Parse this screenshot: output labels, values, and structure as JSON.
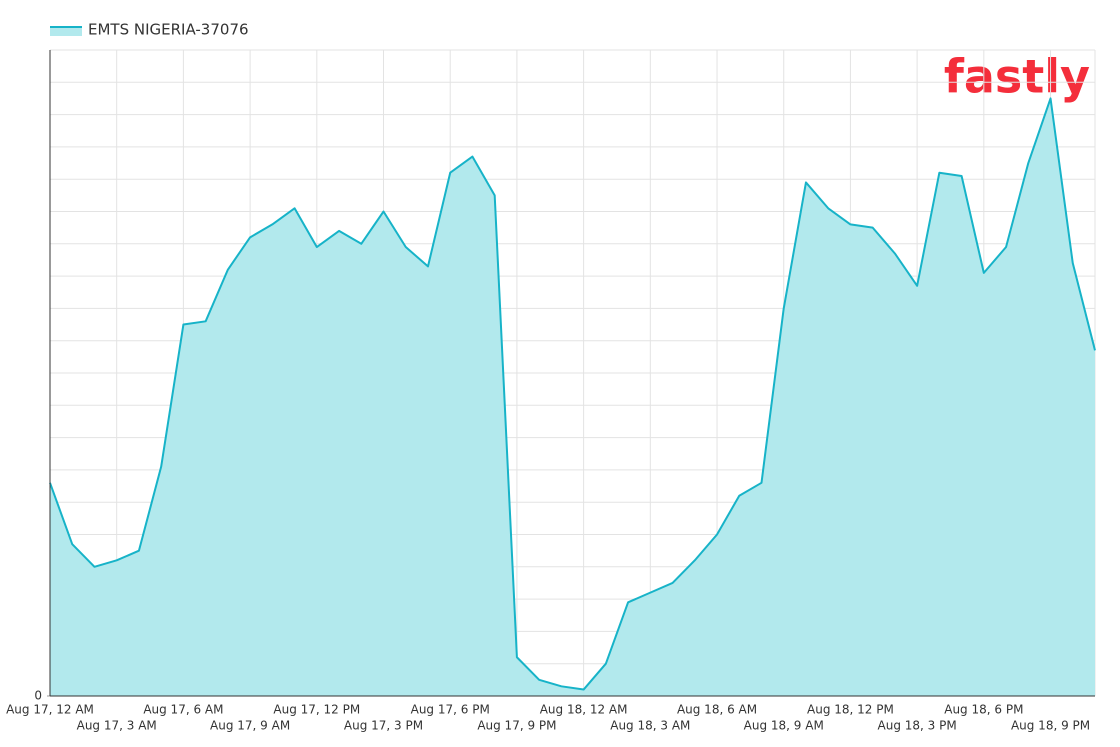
{
  "chart_data": {
    "type": "area",
    "logo": "fastly",
    "categories": [
      "Aug 17, 12 AM",
      null,
      null,
      "Aug 17, 3 AM",
      null,
      null,
      "Aug 17, 6 AM",
      null,
      null,
      "Aug 17, 9 AM",
      null,
      null,
      "Aug 17, 12 PM",
      null,
      null,
      "Aug 17, 3 PM",
      null,
      null,
      "Aug 17, 6 PM",
      null,
      null,
      "Aug 17, 9 PM",
      null,
      null,
      "Aug 18, 12 AM",
      null,
      null,
      "Aug 18, 3 AM",
      null,
      null,
      "Aug 18, 6 AM",
      null,
      null,
      "Aug 18, 9 AM",
      null,
      null,
      "Aug 18, 12 PM",
      null,
      null,
      "Aug 18, 3 PM",
      null,
      null,
      "Aug 18, 6 PM",
      null,
      null,
      "Aug 18, 9 PM",
      null,
      null
    ],
    "series": [
      {
        "name": "EMTS NIGERIA-37076",
        "color": "#17b3c8",
        "fill": "#b2e9ed",
        "values": [
          6.6,
          4.7,
          4.0,
          4.2,
          4.5,
          7.1,
          11.5,
          11.6,
          13.2,
          14.2,
          14.6,
          15.1,
          13.9,
          14.4,
          14.0,
          15.0,
          13.9,
          13.3,
          16.2,
          16.7,
          15.5,
          1.2,
          0.5,
          0.3,
          0.2,
          1.0,
          2.9,
          3.2,
          3.5,
          4.2,
          5.0,
          6.2,
          6.6,
          12.0,
          15.9,
          15.1,
          14.6,
          14.5,
          13.7,
          12.7,
          16.2,
          16.1,
          13.1,
          13.9,
          16.5,
          18.5,
          13.4,
          10.7
        ]
      }
    ],
    "ylim": [
      0,
      20
    ],
    "yticks": [
      0
    ],
    "grid": true
  }
}
